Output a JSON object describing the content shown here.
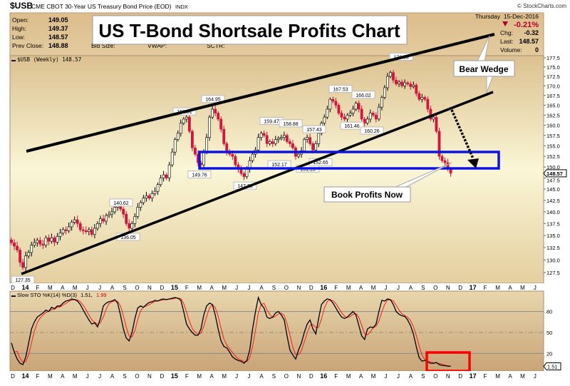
{
  "header": {
    "symbol": "$USB",
    "description": "CME CBOT 30-Year US Treasury Bond Price (EOD)",
    "exchange": "INDX",
    "copyright": "© StockCharts.com",
    "date": "Thursday  15-Dec-2016",
    "pct_change": "-0.21%",
    "change_direction": "down",
    "quote": [
      {
        "label": "Open:",
        "value": "149.05"
      },
      {
        "label": "High:",
        "value": "149.37"
      },
      {
        "label": "Low:",
        "value": "148.57"
      },
      {
        "label": "Prev Close:",
        "value": "148.88"
      }
    ],
    "extra_labels": [
      "Bid Size:",
      "VWAP:",
      "SCTR:"
    ],
    "right_stats": [
      {
        "label": "Chg:",
        "value": "-0.32"
      },
      {
        "label": "Last:",
        "value": "148.57"
      },
      {
        "label": "Volume:",
        "value": "0"
      }
    ]
  },
  "overlay": {
    "title": "US T-Bond Shortsale Profits Chart",
    "bear_wedge": "Bear Wedge",
    "book_profits": "Book Profits Now"
  },
  "colors": {
    "up_candle": "#fffbe8",
    "down_candle": "#d4143c",
    "trend_lines": "#000000",
    "support_box": "#0a14e6",
    "stoch_k": "#000000",
    "stoch_d": "#ff1a1a",
    "highlight_box": "#ff0000",
    "negative": "#b00030"
  },
  "chart_data": [
    {
      "type": "candlestick",
      "legend": "$USB (Weekly) 148.57",
      "period": "weekly",
      "scale": "log",
      "ylim": [
        127.5,
        177.5
      ],
      "y_ticks": [
        "177.5",
        "175.0",
        "172.5",
        "170.0",
        "167.5",
        "165.0",
        "162.5",
        "160.0",
        "157.5",
        "155.0",
        "152.5",
        "150.0",
        "147.5",
        "145.0",
        "142.5",
        "140.0",
        "137.5",
        "135.0",
        "132.5",
        "130.0",
        "127.5"
      ],
      "last_value_label": "148.57",
      "x_range": [
        "Dec 2013",
        "Jun 2017"
      ],
      "month_labels": [
        "D",
        "14",
        "F",
        "M",
        "A",
        "M",
        "J",
        "J",
        "A",
        "S",
        "O",
        "N",
        "D",
        "15",
        "F",
        "M",
        "A",
        "M",
        "J",
        "J",
        "A",
        "S",
        "O",
        "N",
        "D",
        "16",
        "F",
        "M",
        "A",
        "M",
        "J",
        "J",
        "A",
        "S",
        "O",
        "N",
        "D",
        "17",
        "F",
        "M",
        "A",
        "M",
        "J"
      ],
      "weekly_close": [
        133.5,
        132.8,
        132.0,
        129.5,
        128.5,
        130.8,
        131.5,
        133.0,
        133.5,
        134.0,
        133.2,
        133.0,
        134.5,
        133.8,
        134.5,
        133.6,
        134.8,
        135.5,
        136.2,
        136.0,
        136.8,
        137.8,
        138.3,
        137.5,
        136.2,
        136.0,
        135.8,
        136.2,
        135.2,
        136.5,
        137.5,
        138.5,
        138.0,
        139.2,
        139.5,
        140.0,
        141.0,
        141.5,
        140.6,
        139.5,
        137.5,
        136.5,
        137.5,
        139.0,
        141.0,
        142.0,
        143.0,
        143.5,
        143.0,
        144.0,
        144.5,
        146.0,
        147.5,
        148.2,
        147.5,
        150.5,
        153.5,
        156.5,
        158.0,
        160.5,
        161.5,
        162.0,
        158.5,
        154.5,
        153.0,
        151.0,
        150.5,
        153.5,
        157.0,
        162.0,
        164.0,
        163.0,
        161.5,
        159.0,
        155.5,
        153.5,
        153.0,
        152.5,
        150.5,
        149.5,
        148.5,
        147.8,
        149.5,
        151.5,
        153.0,
        154.0,
        157.0,
        158.0,
        157.5,
        155.5,
        156.0,
        155.5,
        156.5,
        156.8,
        157.0,
        157.5,
        156.0,
        155.5,
        154.5,
        152.5,
        153.0,
        153.8,
        156.5,
        157.0,
        155.5,
        154.0,
        155.5,
        158.0,
        160.5,
        162.0,
        164.0,
        166.5,
        166.0,
        165.0,
        163.0,
        162.0,
        161.5,
        162.5,
        163.0,
        164.0,
        165.5,
        164.0,
        161.5,
        160.5,
        161.5,
        163.0,
        162.5,
        161.5,
        164.5,
        167.0,
        169.5,
        172.5,
        173.5,
        171.5,
        170.5,
        171.0,
        170.0,
        170.8,
        170.5,
        169.8,
        170.2,
        168.0,
        166.5,
        167.0,
        166.5,
        164.0,
        161.5,
        162.0,
        158.5,
        152.5,
        151.5,
        151.0,
        149.5,
        148.57
      ],
      "annotations": [
        {
          "label": "127.35",
          "value": 127.35
        },
        {
          "label": "140.62",
          "value": 140.62
        },
        {
          "label": "136.05",
          "value": 136.05
        },
        {
          "label": "161.81",
          "value": 161.81
        },
        {
          "label": "164.95",
          "value": 164.95
        },
        {
          "label": "149.76",
          "value": 149.76
        },
        {
          "label": "147.23",
          "value": 147.23
        },
        {
          "label": "159.47",
          "value": 159.47
        },
        {
          "label": "158.88",
          "value": 158.88
        },
        {
          "label": "152.17",
          "value": 152.17
        },
        {
          "label": "157.43",
          "value": 157.43
        },
        {
          "label": "151.13",
          "value": 151.13
        },
        {
          "label": "152.65",
          "value": 152.65
        },
        {
          "label": "167.53",
          "value": 167.53
        },
        {
          "label": "161.46",
          "value": 161.46
        },
        {
          "label": "166.02",
          "value": 166.02
        },
        {
          "label": "160.26",
          "value": 160.26
        },
        {
          "label": "176.06",
          "value": 176.06
        }
      ]
    },
    {
      "type": "line",
      "title": "Slow STO %K(14) %D(3)",
      "k_label": "1.51,",
      "d_label": "1.99",
      "last_value_label": "1.51",
      "ylim": [
        0,
        100
      ],
      "y_ticks": [
        "80",
        "50",
        "20"
      ],
      "reference_lines": [
        80,
        50,
        20
      ],
      "series": [
        {
          "name": "%K(14)",
          "values": [
            35,
            22,
            12,
            6,
            4,
            15,
            35,
            55,
            65,
            72,
            75,
            78,
            82,
            80,
            86,
            84,
            88,
            88,
            92,
            95,
            96,
            98,
            97,
            95,
            90,
            82,
            75,
            68,
            62,
            64,
            58,
            70,
            88,
            92,
            94,
            95,
            97,
            92,
            75,
            55,
            42,
            38,
            50,
            70,
            85,
            88,
            86,
            90,
            93,
            94,
            96,
            95,
            97,
            98,
            97,
            98,
            99,
            100,
            99,
            96,
            80,
            62,
            55,
            50,
            46,
            46,
            55,
            75,
            88,
            92,
            90,
            75,
            55,
            38,
            30,
            28,
            22,
            15,
            12,
            10,
            9,
            6,
            10,
            25,
            55,
            80,
            100,
            90,
            85,
            72,
            70,
            72,
            78,
            80,
            75,
            68,
            45,
            25,
            18,
            12,
            25,
            35,
            50,
            62,
            68,
            55,
            48,
            70,
            90,
            95,
            98,
            97,
            92,
            85,
            78,
            72,
            70,
            72,
            76,
            80,
            75,
            60,
            45,
            40,
            55,
            58,
            57,
            62,
            80,
            96,
            95,
            98,
            97,
            90,
            80,
            76,
            74,
            73,
            68,
            60,
            48,
            30,
            14,
            9,
            10,
            8,
            6,
            6,
            7,
            4,
            3,
            2.5,
            1.96,
            1.51
          ]
        },
        {
          "name": "%D(3)",
          "derived_from": "%K(14)"
        }
      ]
    }
  ]
}
